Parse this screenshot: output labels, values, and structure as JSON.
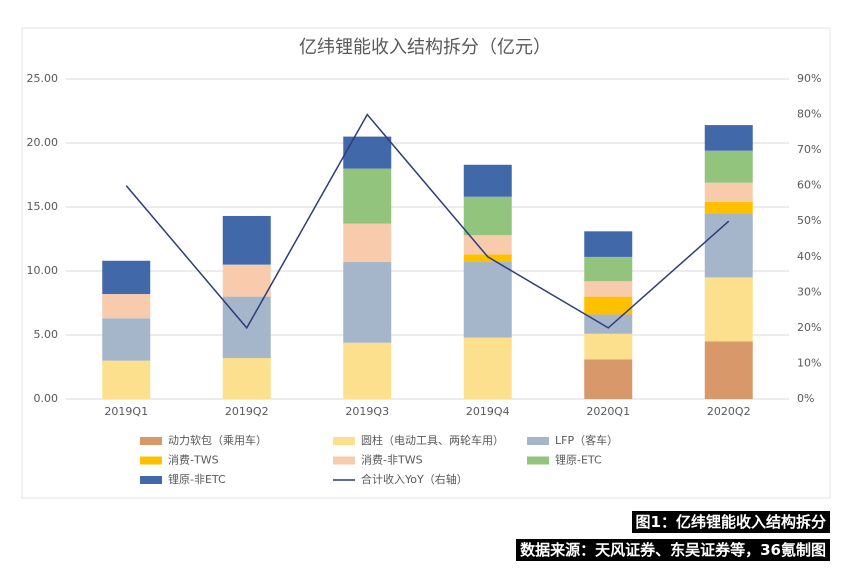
{
  "chart_data": {
    "type": "bar",
    "title": "亿纬锂能收入结构拆分（亿元）",
    "categories": [
      "2019Q1",
      "2019Q2",
      "2019Q3",
      "2019Q4",
      "2020Q1",
      "2020Q2"
    ],
    "series": [
      {
        "name": "动力软包（乘用车）",
        "color": "#d9986a",
        "values": [
          0,
          0,
          0,
          0,
          3.1,
          4.5
        ]
      },
      {
        "name": "圆柱（电动工具、两轮车用）",
        "color": "#fde08d",
        "values": [
          3.0,
          3.2,
          4.4,
          4.8,
          2.0,
          5.0
        ]
      },
      {
        "name": "LFP（客车）",
        "color": "#a5b5ca",
        "values": [
          3.3,
          4.8,
          6.3,
          5.9,
          1.5,
          5.0
        ]
      },
      {
        "name": "消费-TWS",
        "color": "#ffc000",
        "values": [
          0,
          0,
          0,
          0.6,
          1.4,
          0.9
        ]
      },
      {
        "name": "消费-非TWS",
        "color": "#f8cbad",
        "values": [
          1.9,
          2.5,
          3.0,
          1.5,
          1.2,
          1.5
        ]
      },
      {
        "name": "锂原-ETC",
        "color": "#93c47d",
        "values": [
          0,
          0,
          4.3,
          3.0,
          1.9,
          2.5
        ]
      },
      {
        "name": "锂原-非ETC",
        "color": "#4169a9",
        "values": [
          2.6,
          3.8,
          2.5,
          2.5,
          2.0,
          2.0
        ]
      },
      {
        "name": "合计收入YoY（右轴）",
        "color": "#2f3d78",
        "type": "line",
        "axis": "y2",
        "values": [
          60,
          20,
          80,
          40,
          20,
          50
        ]
      }
    ],
    "ylim": [
      0,
      25
    ],
    "yticks": [
      {
        "value": 0,
        "label": "0.00"
      },
      {
        "value": 5,
        "label": "5.00"
      },
      {
        "value": 10,
        "label": "10.00"
      },
      {
        "value": 15,
        "label": "15.00"
      },
      {
        "value": 20,
        "label": "20.00"
      },
      {
        "value": 25,
        "label": "25.00"
      }
    ],
    "y2lim": [
      0,
      90
    ],
    "y2ticks": [
      {
        "value": 0,
        "label": "0%"
      },
      {
        "value": 10,
        "label": "10%"
      },
      {
        "value": 20,
        "label": "20%"
      },
      {
        "value": 30,
        "label": "30%"
      },
      {
        "value": 40,
        "label": "40%"
      },
      {
        "value": 50,
        "label": "50%"
      },
      {
        "value": 60,
        "label": "60%"
      },
      {
        "value": 70,
        "label": "70%"
      },
      {
        "value": 80,
        "label": "80%"
      },
      {
        "value": 90,
        "label": "90%"
      }
    ],
    "grid": true,
    "legend": "bottom"
  },
  "captions": [
    "图1：亿纬锂能收入结构拆分",
    "数据来源：天风证券、东吴证券等，36氪制图"
  ]
}
